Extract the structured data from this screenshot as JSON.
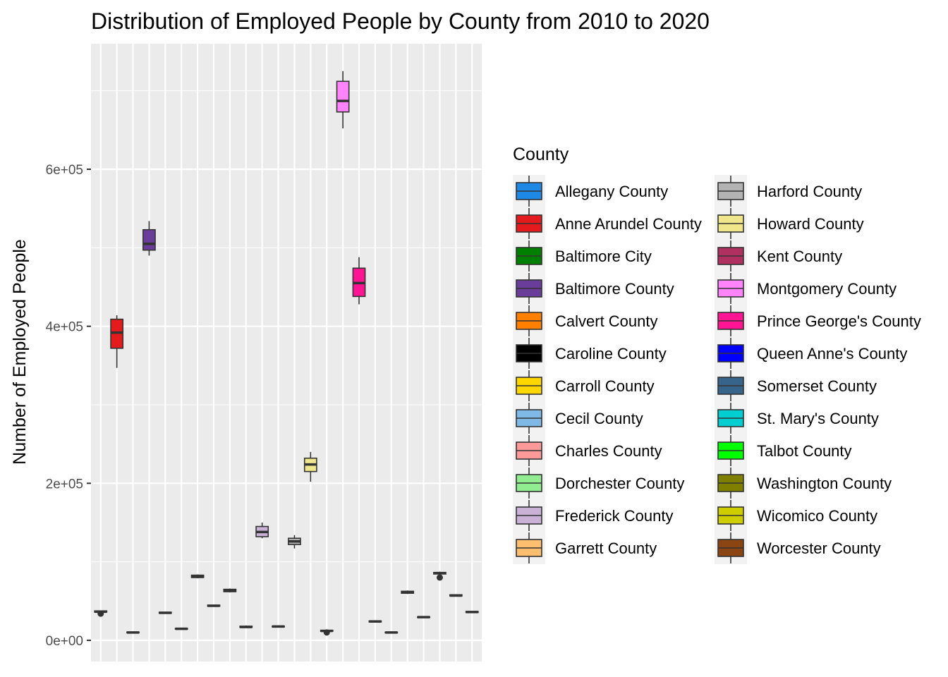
{
  "chart_data": {
    "type": "box",
    "title": "Distribution of Employed People by County from 2010 to 2020",
    "xlabel": "",
    "ylabel": "Number of Employed People",
    "ylim": [
      -20000,
      750000
    ],
    "yticks": [
      0,
      200000,
      400000,
      600000
    ],
    "ytick_labels": [
      "0e+00",
      "2e+05",
      "4e+05",
      "6e+05"
    ],
    "grid": true,
    "legend": {
      "title": "County",
      "position": "right",
      "columns": 2
    },
    "series": [
      {
        "name": "Allegany County",
        "color": "#1E88E5",
        "whisker_low": 36000,
        "q1": 36000,
        "median": 36500,
        "q3": 37500,
        "whisker_high": 38000,
        "outliers": [
          34000
        ]
      },
      {
        "name": "Anne Arundel County",
        "color": "#E41A1C",
        "whisker_low": 347000,
        "q1": 372000,
        "median": 392000,
        "q3": 409000,
        "whisker_high": 414000,
        "outliers": []
      },
      {
        "name": "Baltimore City",
        "color": "#008000",
        "whisker_low": 9500,
        "q1": 9800,
        "median": 10000,
        "q3": 10500,
        "whisker_high": 10800,
        "outliers": []
      },
      {
        "name": "Baltimore County",
        "color": "#6A3D9A",
        "whisker_low": 490000,
        "q1": 497000,
        "median": 505000,
        "q3": 523000,
        "whisker_high": 534000,
        "outliers": []
      },
      {
        "name": "Calvert County",
        "color": "#FF7F00",
        "whisker_low": 34000,
        "q1": 34500,
        "median": 35000,
        "q3": 35800,
        "whisker_high": 36500,
        "outliers": []
      },
      {
        "name": "Caroline County",
        "color": "#000000",
        "whisker_low": 14000,
        "q1": 14300,
        "median": 14700,
        "q3": 15200,
        "whisker_high": 15600,
        "outliers": []
      },
      {
        "name": "Carroll County",
        "color": "#FFD700",
        "whisker_low": 79000,
        "q1": 80000,
        "median": 81000,
        "q3": 83000,
        "whisker_high": 84000,
        "outliers": []
      },
      {
        "name": "Cecil County",
        "color": "#7FB9E6",
        "whisker_low": 43000,
        "q1": 43500,
        "median": 44000,
        "q3": 44800,
        "whisker_high": 45300,
        "outliers": []
      },
      {
        "name": "Charles County",
        "color": "#FB9A99",
        "whisker_low": 61000,
        "q1": 62000,
        "median": 63000,
        "q3": 65000,
        "whisker_high": 66000,
        "outliers": []
      },
      {
        "name": "Dorchester County",
        "color": "#90EE90",
        "whisker_low": 16000,
        "q1": 16500,
        "median": 17000,
        "q3": 18000,
        "whisker_high": 19000,
        "outliers": []
      },
      {
        "name": "Frederick County",
        "color": "#CAB2D6",
        "whisker_low": 130000,
        "q1": 132000,
        "median": 138000,
        "q3": 145000,
        "whisker_high": 150000,
        "outliers": []
      },
      {
        "name": "Garrett County",
        "color": "#FDBF6F",
        "whisker_low": 17000,
        "q1": 17300,
        "median": 17600,
        "q3": 18000,
        "whisker_high": 18300,
        "outliers": []
      },
      {
        "name": "Harford County",
        "color": "#B3B3B3",
        "whisker_low": 117000,
        "q1": 122000,
        "median": 126000,
        "q3": 130000,
        "whisker_high": 134000,
        "outliers": []
      },
      {
        "name": "Howard County",
        "color": "#F0E68C",
        "whisker_low": 202000,
        "q1": 215000,
        "median": 224000,
        "q3": 232000,
        "whisker_high": 240000,
        "outliers": []
      },
      {
        "name": "Kent County",
        "color": "#B03060",
        "whisker_low": 11000,
        "q1": 11500,
        "median": 12000,
        "q3": 12800,
        "whisker_high": 13500,
        "outliers": [
          10000
        ]
      },
      {
        "name": "Montgomery County",
        "color": "#FF83FA",
        "whisker_low": 652000,
        "q1": 673000,
        "median": 687000,
        "q3": 712000,
        "whisker_high": 725000,
        "outliers": []
      },
      {
        "name": "Prince George's County",
        "color": "#FF1493",
        "whisker_low": 428000,
        "q1": 438000,
        "median": 455000,
        "q3": 474000,
        "whisker_high": 488000,
        "outliers": []
      },
      {
        "name": "Queen Anne's County",
        "color": "#0000FF",
        "whisker_low": 23000,
        "q1": 23500,
        "median": 24000,
        "q3": 24600,
        "whisker_high": 25000,
        "outliers": []
      },
      {
        "name": "Somerset County",
        "color": "#36648B",
        "whisker_low": 9000,
        "q1": 9500,
        "median": 10000,
        "q3": 10400,
        "whisker_high": 10800,
        "outliers": []
      },
      {
        "name": "St. Mary's County",
        "color": "#00CED1",
        "whisker_low": 59000,
        "q1": 60000,
        "median": 61000,
        "q3": 62500,
        "whisker_high": 63500,
        "outliers": []
      },
      {
        "name": "Talbot County",
        "color": "#00FF00",
        "whisker_low": 28500,
        "q1": 29000,
        "median": 29500,
        "q3": 30000,
        "whisker_high": 30500,
        "outliers": []
      },
      {
        "name": "Washington County",
        "color": "#808000",
        "whisker_low": 83000,
        "q1": 84500,
        "median": 85500,
        "q3": 86500,
        "whisker_high": 87500,
        "outliers": [
          80000
        ]
      },
      {
        "name": "Wicomico County",
        "color": "#CDCD00",
        "whisker_low": 56000,
        "q1": 56500,
        "median": 57000,
        "q3": 58000,
        "whisker_high": 58800,
        "outliers": []
      },
      {
        "name": "Worcester County",
        "color": "#8B4513",
        "whisker_low": 35000,
        "q1": 35500,
        "median": 36000,
        "q3": 36800,
        "whisker_high": 37300,
        "outliers": []
      }
    ]
  }
}
